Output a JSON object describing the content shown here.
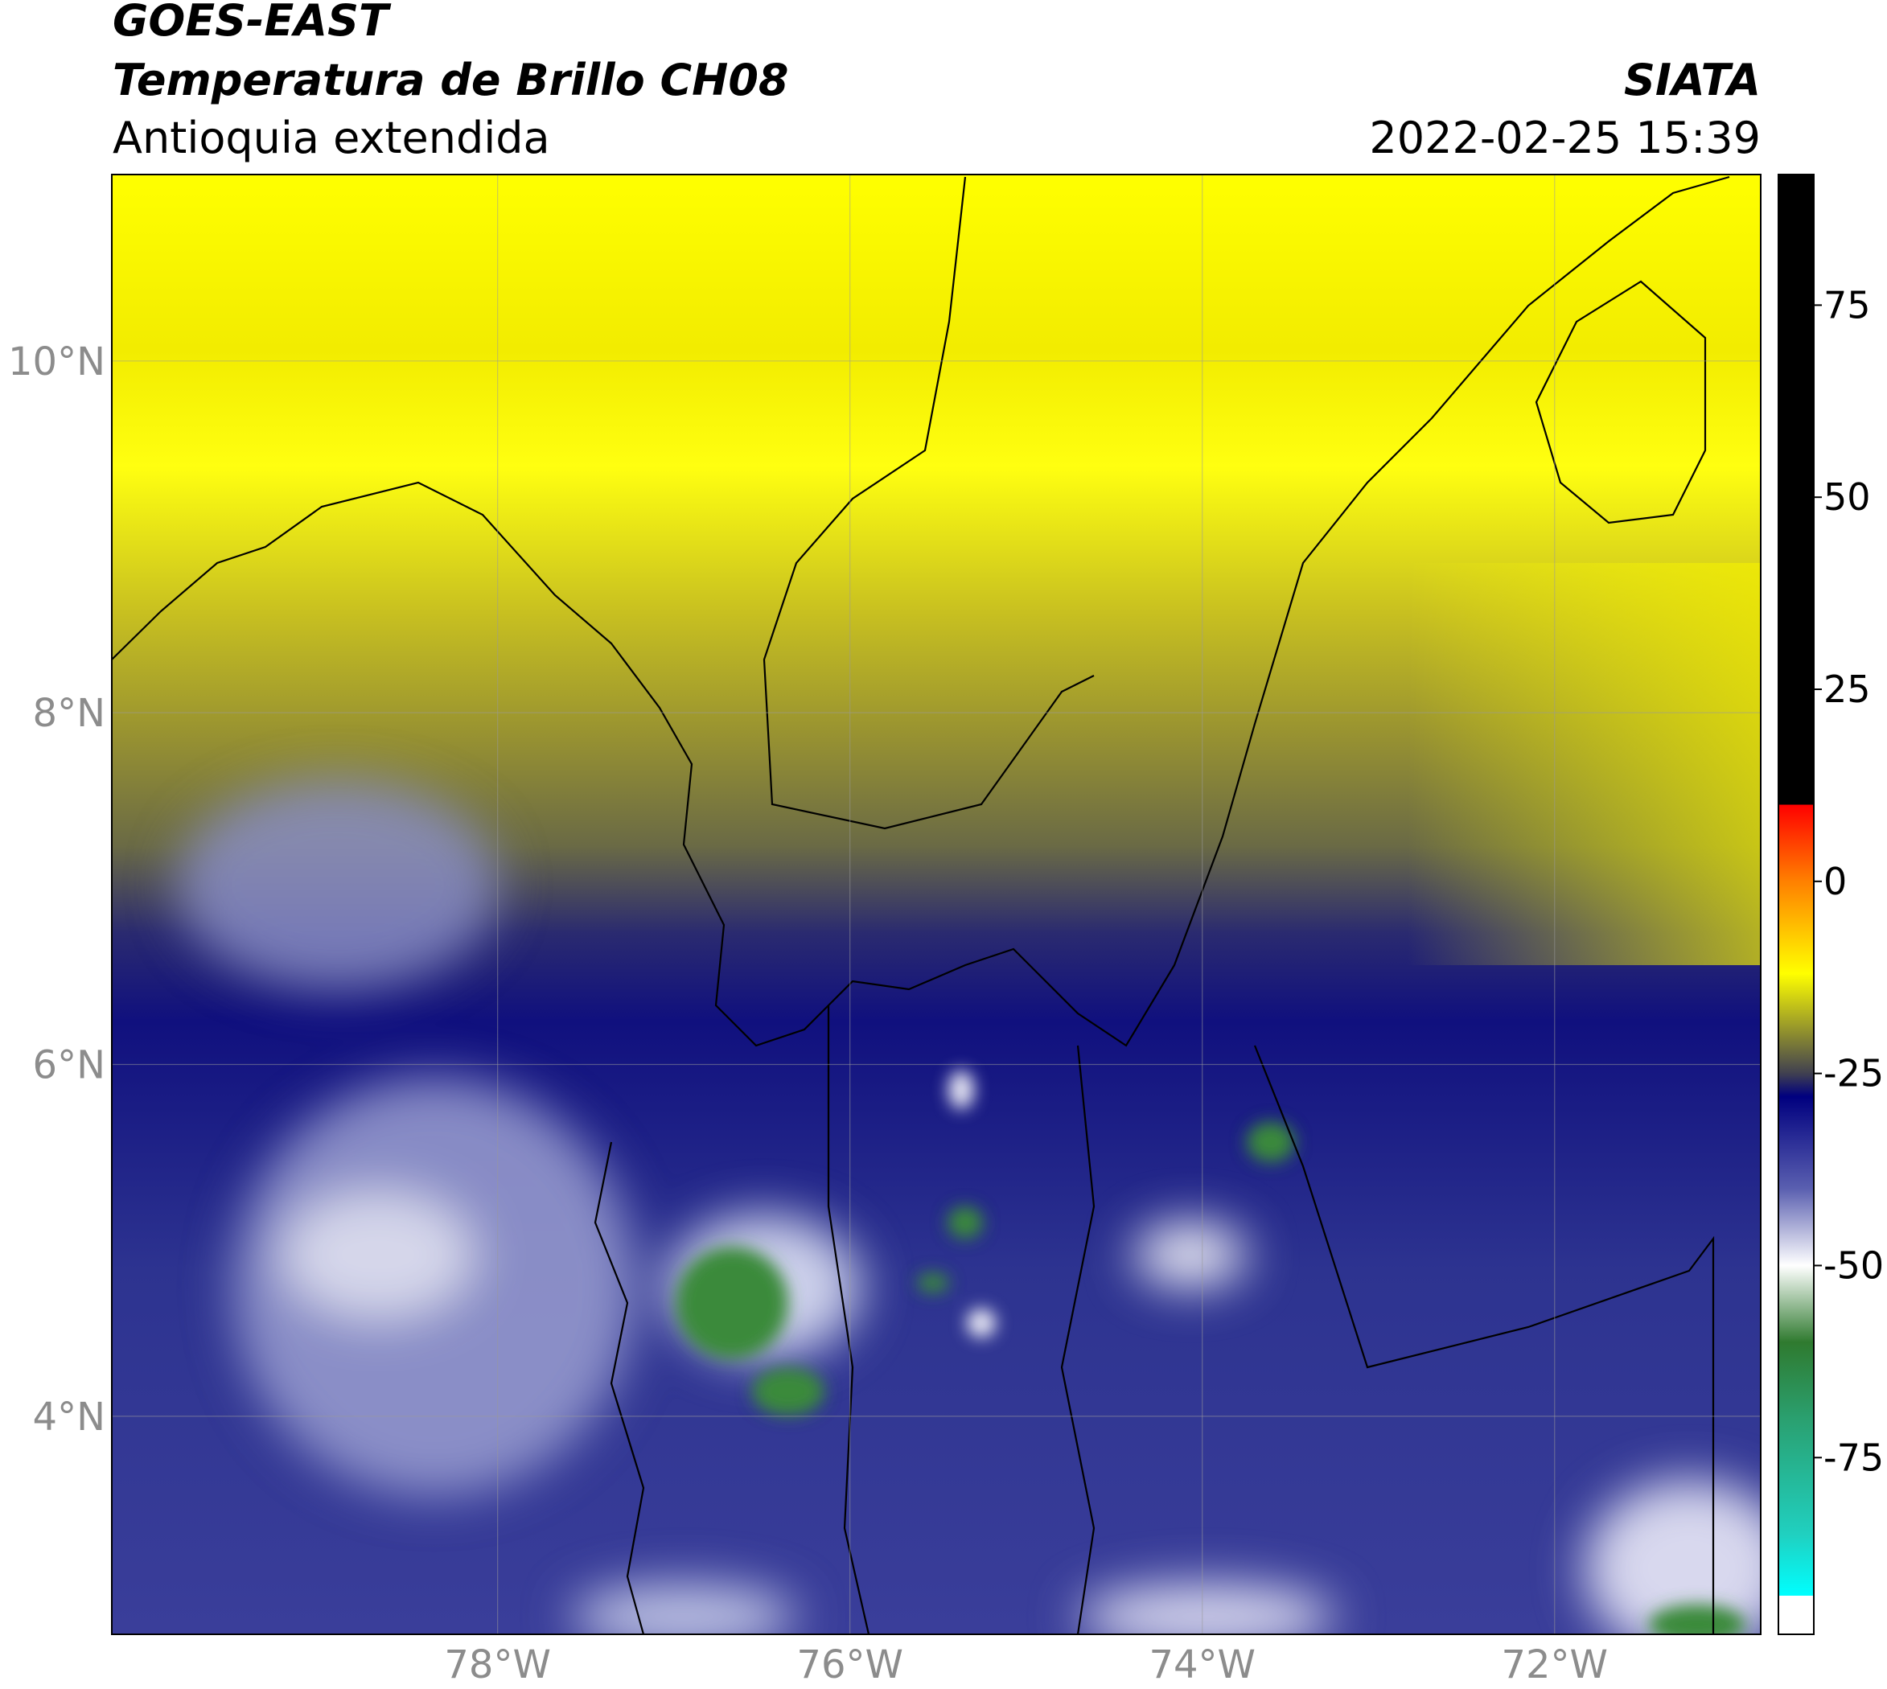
{
  "header": {
    "source": "GOES-EAST",
    "product": "Temperatura de Brillo CH08",
    "region": "Antioquia extendida",
    "agency": "SIATA",
    "datetime": "2022-02-25 15:39"
  },
  "map": {
    "lon_range": [
      -80.19,
      -70.83
    ],
    "lat_range": [
      2.76,
      11.06
    ],
    "lat_ticks": [
      {
        "value": 10,
        "label": "10°N"
      },
      {
        "value": 8,
        "label": "8°N"
      },
      {
        "value": 6,
        "label": "6°N"
      },
      {
        "value": 4,
        "label": "4°N"
      }
    ],
    "lon_ticks": [
      {
        "value": -78,
        "label": "78°W"
      },
      {
        "value": -76,
        "label": "76°W"
      },
      {
        "value": -74,
        "label": "74°W"
      },
      {
        "value": -72,
        "label": "72°W"
      }
    ]
  },
  "colorbar": {
    "range": [
      -98,
      92
    ],
    "ticks": [
      75,
      50,
      25,
      0,
      -25,
      -50,
      -75
    ],
    "colors": [
      [
        92,
        "#000000"
      ],
      [
        10,
        "#000000"
      ],
      [
        10,
        "#ff0000"
      ],
      [
        0,
        "#ff8000"
      ],
      [
        -12,
        "#ffff00"
      ],
      [
        -20,
        "#8a8a30"
      ],
      [
        -25,
        "#404050"
      ],
      [
        -28,
        "#00007f"
      ],
      [
        -40,
        "#5a5fb0"
      ],
      [
        -50,
        "#ffffff"
      ],
      [
        -60,
        "#2f7a2f"
      ],
      [
        -70,
        "#2aa070"
      ],
      [
        -85,
        "#20d0c0"
      ],
      [
        -93,
        "#00ffff"
      ],
      [
        -93,
        "#ffffff"
      ],
      [
        -98,
        "#ffffff"
      ]
    ]
  }
}
